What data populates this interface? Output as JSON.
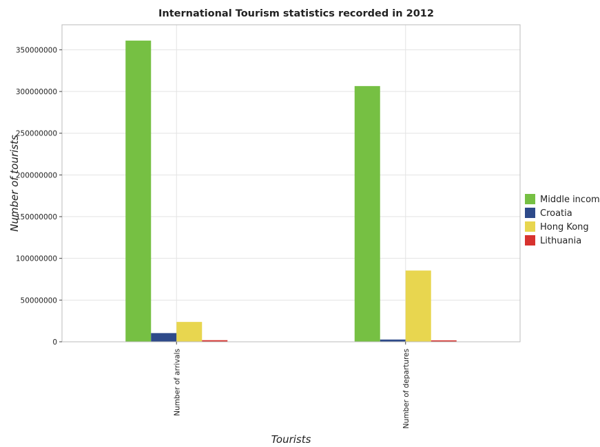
{
  "chart_data": {
    "type": "bar",
    "title": "International Tourism statistics recorded in 2012",
    "xlabel": "Tourists",
    "ylabel": "Number of tourists",
    "categories": [
      "Number of arrivals",
      "Number of departures"
    ],
    "ylim": [
      0,
      380000000
    ],
    "yticks": [
      0,
      50000000,
      100000000,
      150000000,
      200000000,
      250000000,
      300000000,
      350000000
    ],
    "ytick_labels": [
      "0",
      "50000000",
      "100000000",
      "150000000",
      "200000000",
      "250000000",
      "300000000",
      "350000000"
    ],
    "grid": true,
    "legend_position": "right",
    "series": [
      {
        "name": "Middle income",
        "color": "#76c043",
        "values": [
          361000000,
          306500000
        ]
      },
      {
        "name": "Croatia",
        "color": "#2e4a8a",
        "values": [
          10400000,
          2700000
        ]
      },
      {
        "name": "Hong Kong",
        "color": "#e8d64f",
        "values": [
          23800000,
          85400000
        ]
      },
      {
        "name": "Lithuania",
        "color": "#d7322e",
        "values": [
          1900000,
          1700000
        ]
      }
    ]
  }
}
